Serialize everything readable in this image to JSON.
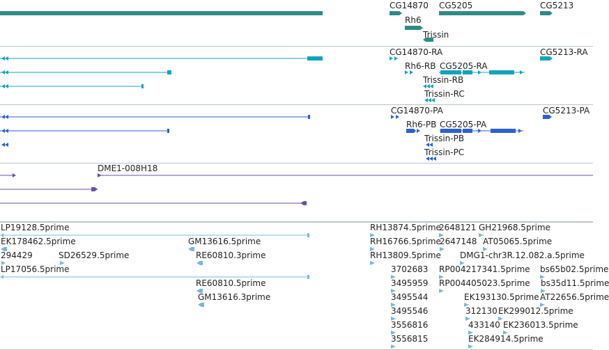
{
  "colors": {
    "gene": "#2e8b87",
    "transcript_ra": "#13a3bd",
    "transcript_pa": "#2a62d0",
    "clone": "#6b4fa6",
    "est": "#77b8dc",
    "divider": "#b9c4cc"
  },
  "tracks": {
    "genes": {
      "labels": {
        "g1": "CG14870",
        "g2": "CG5205",
        "g3": "CG5213",
        "g4": "Rh6",
        "g5": "Trissin"
      }
    },
    "transcripts_ra": {
      "labels": {
        "t1": "CG14870-RA",
        "t2": "CG5213-RA",
        "t3": "Rh6-RB",
        "t4": "CG5205-RA",
        "t5": "Trissin-RB",
        "t6": "Trissin-RC"
      }
    },
    "transcripts_pa": {
      "labels": {
        "p1": "CG14870-PA",
        "p2": "CG5213-PA",
        "p3": "Rh6-PB",
        "p4": "CG5205-PA",
        "p5": "Trissin-PB",
        "p6": "Trissin-PC"
      }
    },
    "clones": {
      "labels": {
        "c1": "DME1-008H18"
      }
    },
    "ests": {
      "labels": {
        "e1": "LP19128.5prime",
        "e2": "EK178462.5prime",
        "e3": "GM13616.5prime",
        "e4": "294429",
        "e5": "SD26529.5prime",
        "e6": "RE60810.3prime",
        "e7": "LP17056.5prime",
        "e8": "RE60810.5prime",
        "e9": "GM13616.3prime",
        "e10": "RH13874.5prime",
        "e11": "2648121",
        "e12": "GH21968.5prime",
        "e13": "RH16766.5prime",
        "e14": "2647148",
        "e15": "AT05065.5prime",
        "e16": "RH13809.5prime",
        "e17": "DMG1-chr3R.12.082.a.5prime",
        "e18": "3702683",
        "e19": "RP004217341.5prime",
        "e20": "bs65b02.5prime",
        "e21": "3495959",
        "e22": "RP004405023.5prime",
        "e23": "bs35d11.5prime",
        "e24": "3495544",
        "e25": "EK193130.5prime",
        "e26": "AT22656.5prime",
        "e27": "3495546",
        "e28": "312130",
        "e29": "EK299012.5prime",
        "e30": "3556816",
        "e31": "433140",
        "e32": "EK236013.5prime",
        "e33": "3556815",
        "e34": "EK284914.5prime"
      }
    }
  }
}
